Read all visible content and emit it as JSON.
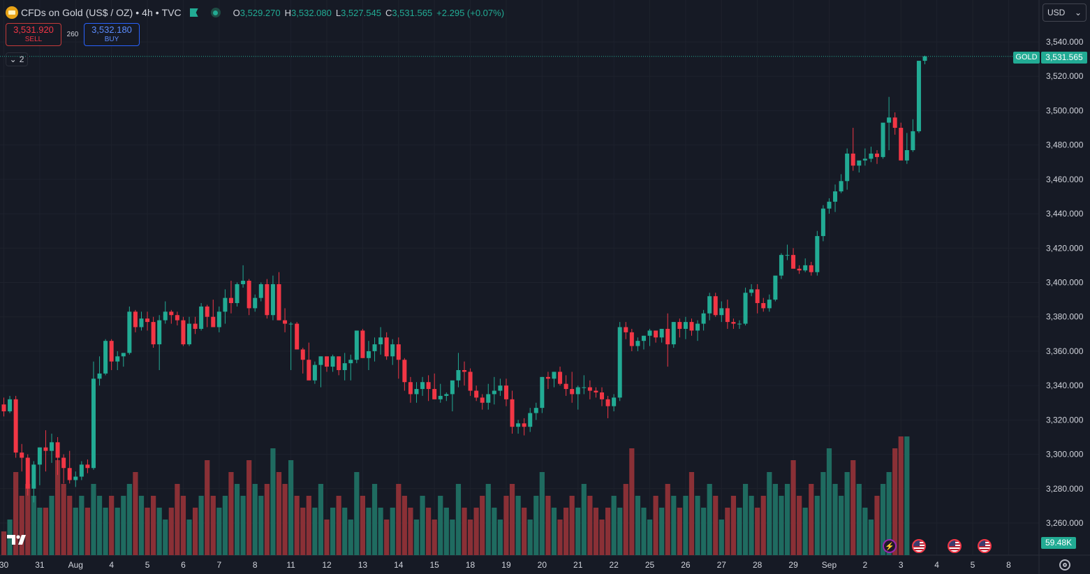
{
  "symbol": {
    "name": "CFDs on Gold (US$ / OZ)",
    "interval": "4h",
    "source": "TVC",
    "separator": "•",
    "icon": "gold-coin-icon"
  },
  "ohlc": {
    "open_label": "O",
    "open": "3,529.270",
    "high_label": "H",
    "high": "3,532.080",
    "low_label": "L",
    "low": "3,527.545",
    "close_label": "C",
    "close": "3,531.565",
    "change": "+2.295 (+0.07%)"
  },
  "trade": {
    "sell_price": "3,531.920",
    "sell_label": "SELL",
    "spread": "260",
    "buy_price": "3,532.180",
    "buy_label": "BUY"
  },
  "indicators_collapse": {
    "count": "2"
  },
  "currency_selector": {
    "value": "USD"
  },
  "last_price": {
    "tag": "GOLD",
    "value": "3,531.565"
  },
  "volume_value": "59.48K",
  "colors": {
    "up": "#22ab94",
    "down": "#f23645",
    "background": "#161a25",
    "grid": "#1e222d",
    "text": "#d1d4dc"
  },
  "chart_data": {
    "type": "candlestick",
    "price_axis": {
      "ylim": [
        3250,
        3545
      ],
      "ticks": [
        3540,
        3520,
        3500,
        3480,
        3460,
        3440,
        3420,
        3400,
        3380,
        3360,
        3340,
        3320,
        3300,
        3280,
        3260
      ],
      "tick_labels": [
        "3,540.000",
        "3,520.000",
        "3,500.000",
        "3,480.000",
        "3,460.000",
        "3,440.000",
        "3,420.000",
        "3,400.000",
        "3,380.000",
        "3,360.000",
        "3,340.000",
        "3,320.000",
        "3,300.000",
        "3,280.000",
        "3,260.000"
      ]
    },
    "time_axis": {
      "labels": [
        "30",
        "31",
        "Aug",
        "4",
        "5",
        "6",
        "7",
        "8",
        "11",
        "12",
        "13",
        "14",
        "15",
        "18",
        "19",
        "20",
        "21",
        "22",
        "25",
        "26",
        "27",
        "28",
        "29",
        "Sep",
        "2",
        "3",
        "4",
        "5",
        "8"
      ],
      "bar_index": [
        -0.5,
        5.5,
        11.5,
        17.5,
        23.5,
        29.5,
        35.5,
        41.5,
        47.5,
        53.5,
        59.5,
        65.5,
        71.5,
        77.5,
        83.5,
        89.5,
        95.5,
        101.5,
        107.5,
        113.5,
        119.5,
        125.5,
        131.5,
        137.5,
        143.5,
        149.5,
        155.5,
        161.5,
        167.5
      ]
    },
    "candles_ohlc": [
      [
        3329,
        3333,
        3322,
        3325
      ],
      [
        3325,
        3334,
        3324,
        3332
      ],
      [
        3332,
        3334,
        3298,
        3301
      ],
      [
        3301,
        3306,
        3290,
        3298
      ],
      [
        3298,
        3300,
        3276,
        3280
      ],
      [
        3280,
        3296,
        3272,
        3294
      ],
      [
        3294,
        3304,
        3282,
        3304
      ],
      [
        3304,
        3314,
        3290,
        3302
      ],
      [
        3302,
        3312,
        3295,
        3307
      ],
      [
        3307,
        3310,
        3288,
        3298
      ],
      [
        3298,
        3300,
        3283,
        3292
      ],
      [
        3292,
        3302,
        3283,
        3285
      ],
      [
        3285,
        3290,
        3281,
        3287
      ],
      [
        3287,
        3296,
        3285,
        3294
      ],
      [
        3294,
        3297,
        3289,
        3292
      ],
      [
        3292,
        3354,
        3291,
        3344
      ],
      [
        3344,
        3357,
        3340,
        3347
      ],
      [
        3347,
        3367,
        3346,
        3366
      ],
      [
        3366,
        3367,
        3349,
        3354
      ],
      [
        3354,
        3360,
        3349,
        3357
      ],
      [
        3357,
        3359,
        3351,
        3359
      ],
      [
        3359,
        3386,
        3358,
        3383
      ],
      [
        3383,
        3384,
        3371,
        3374
      ],
      [
        3374,
        3383,
        3372,
        3379
      ],
      [
        3379,
        3383,
        3372,
        3377
      ],
      [
        3377,
        3380,
        3362,
        3364
      ],
      [
        3364,
        3381,
        3349,
        3378
      ],
      [
        3378,
        3389,
        3376,
        3383
      ],
      [
        3383,
        3384,
        3376,
        3381
      ],
      [
        3381,
        3383,
        3375,
        3378
      ],
      [
        3378,
        3380,
        3363,
        3364
      ],
      [
        3364,
        3380,
        3363,
        3376
      ],
      [
        3376,
        3380,
        3370,
        3373
      ],
      [
        3373,
        3388,
        3372,
        3386
      ],
      [
        3386,
        3387,
        3374,
        3380
      ],
      [
        3380,
        3390,
        3376,
        3374
      ],
      [
        3374,
        3386,
        3371,
        3383
      ],
      [
        3383,
        3396,
        3376,
        3391
      ],
      [
        3391,
        3401,
        3382,
        3388
      ],
      [
        3388,
        3400,
        3386,
        3399
      ],
      [
        3399,
        3410,
        3397,
        3401
      ],
      [
        3401,
        3402,
        3381,
        3385
      ],
      [
        3385,
        3393,
        3383,
        3391
      ],
      [
        3391,
        3400,
        3389,
        3399
      ],
      [
        3399,
        3402,
        3379,
        3381
      ],
      [
        3381,
        3404,
        3378,
        3399
      ],
      [
        3399,
        3406,
        3378,
        3378
      ],
      [
        3378,
        3385,
        3371,
        3376
      ],
      [
        3376,
        3377,
        3349,
        3376
      ],
      [
        3376,
        3377,
        3362,
        3361
      ],
      [
        3361,
        3362,
        3347,
        3355
      ],
      [
        3355,
        3365,
        3350,
        3343
      ],
      [
        3343,
        3354,
        3341,
        3352
      ],
      [
        3352,
        3357,
        3339,
        3357
      ],
      [
        3357,
        3357,
        3348,
        3351
      ],
      [
        3351,
        3358,
        3348,
        3357
      ],
      [
        3357,
        3357,
        3346,
        3349
      ],
      [
        3349,
        3359,
        3343,
        3353
      ],
      [
        3353,
        3358,
        3343,
        3355
      ],
      [
        3355,
        3368,
        3353,
        3372
      ],
      [
        3372,
        3373,
        3356,
        3356
      ],
      [
        3356,
        3366,
        3349,
        3360
      ],
      [
        3360,
        3368,
        3354,
        3364
      ],
      [
        3364,
        3374,
        3358,
        3368
      ],
      [
        3368,
        3371,
        3355,
        3357
      ],
      [
        3357,
        3367,
        3352,
        3364
      ],
      [
        3364,
        3368,
        3344,
        3355
      ],
      [
        3355,
        3356,
        3337,
        3342
      ],
      [
        3342,
        3345,
        3330,
        3335
      ],
      [
        3335,
        3342,
        3330,
        3338
      ],
      [
        3338,
        3345,
        3334,
        3342
      ],
      [
        3342,
        3346,
        3331,
        3338
      ],
      [
        3338,
        3347,
        3332,
        3332
      ],
      [
        3332,
        3341,
        3330,
        3334
      ],
      [
        3334,
        3336,
        3331,
        3335
      ],
      [
        3335,
        3342,
        3325,
        3343
      ],
      [
        3343,
        3359,
        3339,
        3349
      ],
      [
        3349,
        3354,
        3340,
        3348
      ],
      [
        3348,
        3350,
        3334,
        3337
      ],
      [
        3337,
        3340,
        3331,
        3333
      ],
      [
        3333,
        3335,
        3326,
        3330
      ],
      [
        3330,
        3341,
        3326,
        3335
      ],
      [
        3335,
        3345,
        3329,
        3337
      ],
      [
        3337,
        3344,
        3334,
        3340
      ],
      [
        3340,
        3344,
        3328,
        3332
      ],
      [
        3332,
        3337,
        3312,
        3316
      ],
      [
        3316,
        3320,
        3312,
        3318
      ],
      [
        3318,
        3321,
        3311,
        3316
      ],
      [
        3316,
        3327,
        3313,
        3324
      ],
      [
        3324,
        3330,
        3320,
        3327
      ],
      [
        3327,
        3345,
        3324,
        3345
      ],
      [
        3345,
        3348,
        3338,
        3344
      ],
      [
        3344,
        3348,
        3339,
        3348
      ],
      [
        3348,
        3351,
        3340,
        3341
      ],
      [
        3341,
        3346,
        3334,
        3338
      ],
      [
        3338,
        3348,
        3330,
        3335
      ],
      [
        3335,
        3340,
        3326,
        3339
      ],
      [
        3339,
        3346,
        3335,
        3339
      ],
      [
        3339,
        3343,
        3332,
        3337
      ],
      [
        3337,
        3339,
        3333,
        3336
      ],
      [
        3336,
        3339,
        3328,
        3332
      ],
      [
        3332,
        3334,
        3321,
        3328
      ],
      [
        3328,
        3335,
        3325,
        3333
      ],
      [
        3333,
        3377,
        3331,
        3374
      ],
      [
        3374,
        3377,
        3367,
        3371
      ],
      [
        3371,
        3373,
        3360,
        3363
      ],
      [
        3363,
        3368,
        3360,
        3366
      ],
      [
        3366,
        3369,
        3361,
        3369
      ],
      [
        3369,
        3373,
        3363,
        3372
      ],
      [
        3372,
        3372,
        3365,
        3368
      ],
      [
        3368,
        3373,
        3365,
        3373
      ],
      [
        3373,
        3382,
        3351,
        3364
      ],
      [
        3364,
        3377,
        3362,
        3377
      ],
      [
        3377,
        3379,
        3368,
        3373
      ],
      [
        3373,
        3380,
        3367,
        3377
      ],
      [
        3377,
        3379,
        3369,
        3372
      ],
      [
        3372,
        3378,
        3366,
        3376
      ],
      [
        3376,
        3384,
        3372,
        3382
      ],
      [
        3382,
        3394,
        3378,
        3392
      ],
      [
        3392,
        3394,
        3380,
        3381
      ],
      [
        3381,
        3389,
        3377,
        3385
      ],
      [
        3385,
        3390,
        3373,
        3377
      ],
      [
        3377,
        3379,
        3373,
        3376
      ],
      [
        3376,
        3378,
        3373,
        3376
      ],
      [
        3376,
        3397,
        3375,
        3394
      ],
      [
        3394,
        3399,
        3392,
        3396
      ],
      [
        3396,
        3399,
        3382,
        3388
      ],
      [
        3388,
        3391,
        3383,
        3385
      ],
      [
        3385,
        3393,
        3383,
        3390
      ],
      [
        3390,
        3400,
        3389,
        3404
      ],
      [
        3404,
        3417,
        3402,
        3416
      ],
      [
        3416,
        3422,
        3413,
        3416
      ],
      [
        3416,
        3420,
        3409,
        3408
      ],
      [
        3408,
        3410,
        3405,
        3407
      ],
      [
        3407,
        3414,
        3406,
        3410
      ],
      [
        3410,
        3412,
        3404,
        3406
      ],
      [
        3406,
        3430,
        3404,
        3427
      ],
      [
        3427,
        3445,
        3424,
        3443
      ],
      [
        3443,
        3449,
        3440,
        3447
      ],
      [
        3447,
        3457,
        3441,
        3453
      ],
      [
        3453,
        3463,
        3452,
        3459
      ],
      [
        3459,
        3478,
        3454,
        3475
      ],
      [
        3475,
        3490,
        3465,
        3468
      ],
      [
        3468,
        3470,
        3464,
        3471
      ],
      [
        3471,
        3478,
        3468,
        3472
      ],
      [
        3472,
        3479,
        3470,
        3475
      ],
      [
        3475,
        3477,
        3469,
        3473
      ],
      [
        3473,
        3488,
        3472,
        3493
      ],
      [
        3493,
        3508,
        3477,
        3496
      ],
      [
        3496,
        3499,
        3486,
        3490
      ],
      [
        3490,
        3493,
        3475,
        3471
      ],
      [
        3471,
        3487,
        3469,
        3477
      ],
      [
        3477,
        3495,
        3476,
        3488
      ],
      [
        3488,
        3529,
        3487,
        3529
      ],
      [
        3529,
        3532,
        3527,
        3531.565
      ]
    ],
    "volume": [
      0.2,
      0.3,
      0.7,
      0.5,
      0.6,
      0.5,
      0.4,
      0.4,
      0.5,
      0.8,
      0.6,
      0.5,
      0.4,
      0.5,
      0.4,
      0.6,
      0.5,
      0.4,
      0.5,
      0.4,
      0.5,
      0.6,
      0.7,
      0.5,
      0.4,
      0.5,
      0.4,
      0.3,
      0.4,
      0.6,
      0.5,
      0.3,
      0.4,
      0.5,
      0.8,
      0.5,
      0.4,
      0.5,
      0.7,
      0.6,
      0.5,
      0.8,
      0.6,
      0.5,
      0.6,
      0.9,
      0.7,
      0.6,
      0.8,
      0.5,
      0.4,
      0.5,
      0.4,
      0.6,
      0.3,
      0.4,
      0.5,
      0.4,
      0.3,
      0.7,
      0.5,
      0.4,
      0.6,
      0.4,
      0.3,
      0.4,
      0.6,
      0.5,
      0.4,
      0.3,
      0.5,
      0.4,
      0.3,
      0.5,
      0.4,
      0.3,
      0.6,
      0.4,
      0.3,
      0.4,
      0.5,
      0.6,
      0.4,
      0.3,
      0.5,
      0.6,
      0.5,
      0.4,
      0.3,
      0.5,
      0.7,
      0.5,
      0.4,
      0.3,
      0.4,
      0.5,
      0.4,
      0.6,
      0.5,
      0.4,
      0.3,
      0.4,
      0.5,
      0.4,
      0.6,
      0.9,
      0.5,
      0.4,
      0.3,
      0.5,
      0.4,
      0.6,
      0.5,
      0.4,
      0.5,
      0.7,
      0.5,
      0.4,
      0.6,
      0.5,
      0.3,
      0.4,
      0.5,
      0.4,
      0.6,
      0.5,
      0.4,
      0.5,
      0.7,
      0.6,
      0.5,
      0.6,
      0.8,
      0.5,
      0.4,
      0.6,
      0.5,
      0.7,
      0.9,
      0.6,
      0.5,
      0.7,
      0.8,
      0.6,
      0.4,
      0.3,
      0.5,
      0.6,
      0.7,
      0.9,
      1.0,
      1.0
    ]
  }
}
